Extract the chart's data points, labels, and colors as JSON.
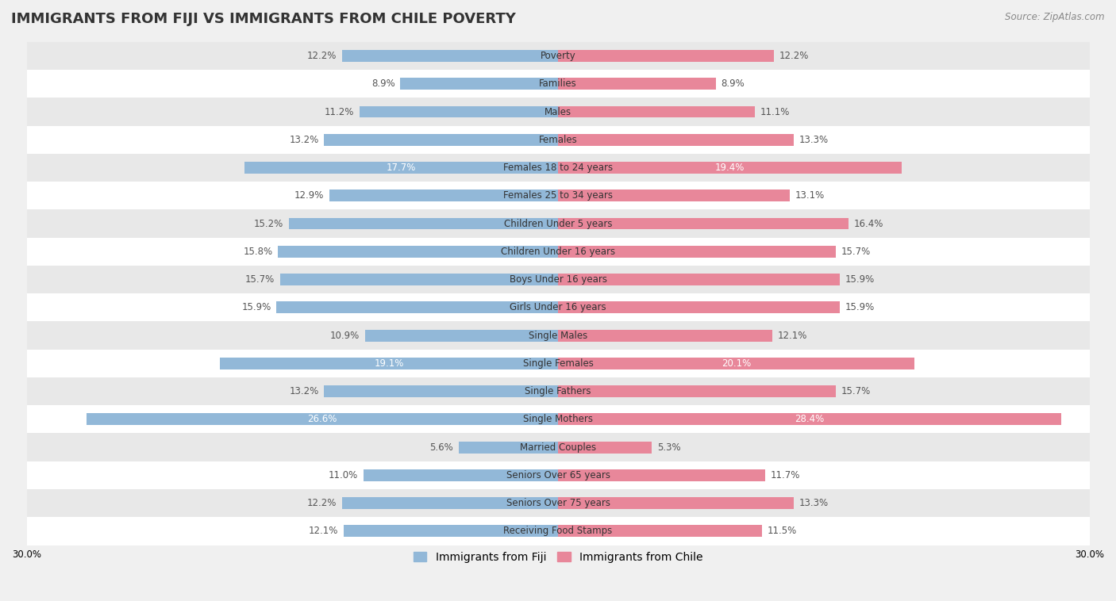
{
  "title": "IMMIGRANTS FROM FIJI VS IMMIGRANTS FROM CHILE POVERTY",
  "source": "Source: ZipAtlas.com",
  "categories": [
    "Poverty",
    "Families",
    "Males",
    "Females",
    "Females 18 to 24 years",
    "Females 25 to 34 years",
    "Children Under 5 years",
    "Children Under 16 years",
    "Boys Under 16 years",
    "Girls Under 16 years",
    "Single Males",
    "Single Females",
    "Single Fathers",
    "Single Mothers",
    "Married Couples",
    "Seniors Over 65 years",
    "Seniors Over 75 years",
    "Receiving Food Stamps"
  ],
  "fiji_values": [
    12.2,
    8.9,
    11.2,
    13.2,
    17.7,
    12.9,
    15.2,
    15.8,
    15.7,
    15.9,
    10.9,
    19.1,
    13.2,
    26.6,
    5.6,
    11.0,
    12.2,
    12.1
  ],
  "chile_values": [
    12.2,
    8.9,
    11.1,
    13.3,
    19.4,
    13.1,
    16.4,
    15.7,
    15.9,
    15.9,
    12.1,
    20.1,
    15.7,
    28.4,
    5.3,
    11.7,
    13.3,
    11.5
  ],
  "fiji_color": "#92b8d8",
  "chile_color": "#e8879a",
  "fiji_label": "Immigrants from Fiji",
  "chile_label": "Immigrants from Chile",
  "bar_height": 0.42,
  "xlim_max": 30,
  "background_color": "#f0f0f0",
  "row_color_light": "#ffffff",
  "row_color_dark": "#e8e8e8",
  "label_color_dark": "#555555",
  "label_color_light": "#ffffff",
  "cat_label_fontsize": 8.5,
  "value_label_fontsize": 8.5,
  "title_fontsize": 13,
  "legend_fontsize": 10,
  "fiji_white_threshold": 16.5,
  "chile_white_threshold": 18.0
}
